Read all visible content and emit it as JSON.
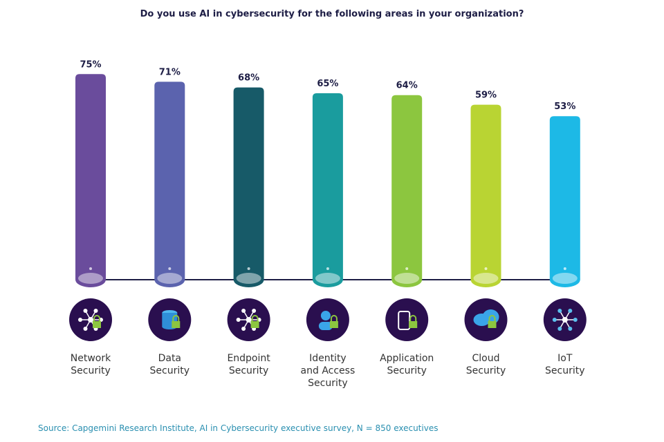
{
  "chart_data": {
    "type": "bar",
    "title": "Do you use AI in cybersecurity for the following areas in your organization?",
    "categories": [
      "Network\nSecurity",
      "Data\nSecurity",
      "Endpoint\nSecurity",
      "Identity\nand Access\nSecurity",
      "Application\nSecurity",
      "Cloud\nSecurity",
      "IoT\nSecurity"
    ],
    "values": [
      75,
      71,
      68,
      65,
      64,
      59,
      53
    ],
    "data_labels": [
      "75%",
      "71%",
      "68%",
      "65%",
      "64%",
      "59%",
      "53%"
    ],
    "colors": [
      "#6a4c9c",
      "#5b63ae",
      "#175a68",
      "#1a9c9e",
      "#8cc63f",
      "#b9d433",
      "#1db9e6"
    ],
    "icons": [
      "network-lock-icon",
      "database-lock-icon",
      "endpoint-network-icon",
      "identity-user-icon",
      "application-mobile-lock-icon",
      "cloud-lock-icon",
      "iot-hub-icon"
    ],
    "grid": false,
    "legend": "none",
    "source": "Source: Capgemini Research Institute, AI in Cybersecurity executive survey, N = 850 executives"
  }
}
